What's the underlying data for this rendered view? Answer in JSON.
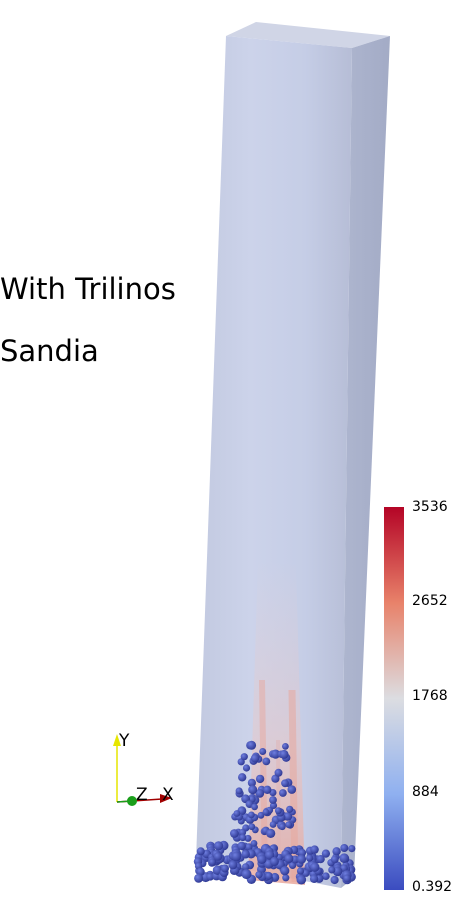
{
  "captions": [
    "With Trilinos",
    "Sandia"
  ],
  "colorbar": {
    "ticks": [
      "3536",
      "2652",
      "1768",
      "884",
      "0.392"
    ],
    "tick_values": [
      3536,
      2652,
      1768,
      884,
      0.392
    ],
    "range": [
      0.392,
      3536
    ],
    "colors": {
      "top": "#b40426",
      "upper": "#e8826a",
      "middle": "#dcdde1",
      "lower": "#8fb0f0",
      "bottom": "#3b4cc0"
    }
  },
  "axes": {
    "y": "Y",
    "z": "Z",
    "x": "X",
    "colors": {
      "y": "#e6e600",
      "z": "#1a9e1a",
      "x": "#a00000"
    }
  },
  "scene": {
    "column_color": "#c5cce3",
    "particle_color": "#3a47b0"
  }
}
